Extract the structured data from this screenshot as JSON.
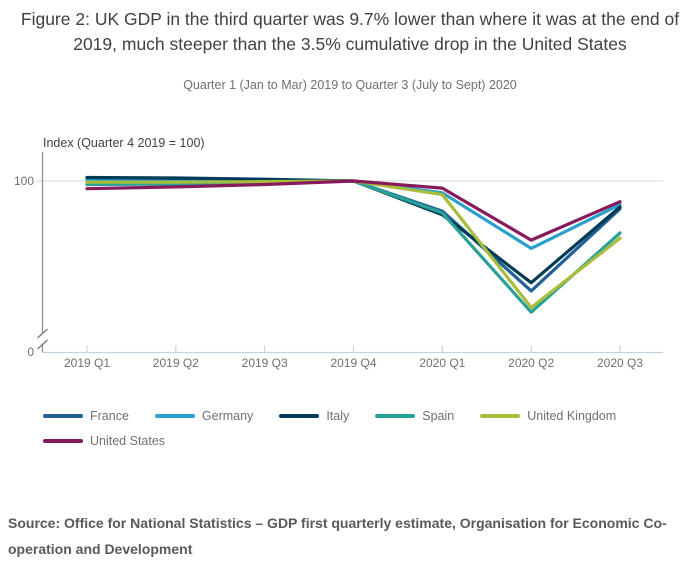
{
  "header": {
    "title": "Figure 2: UK GDP in the third quarter was 9.7% lower than where it was at the end of 2019, much steeper than the 3.5% cumulative drop in the United States",
    "subtitle": "Quarter 1 (Jan to Mar) 2019 to Quarter 3 (July to Sept) 2020"
  },
  "chart_data": {
    "type": "line",
    "title": "Figure 2: UK GDP in the third quarter was 9.7% lower than where it was at the end of 2019, much steeper than the 3.5% cumulative drop in the United States",
    "subtitle": "Quarter 1 (Jan to Mar) 2019 to Quarter 3 (July to Sept) 2020",
    "ylabel": "Index (Quarter 4 2019 = 100)",
    "xlabel": "",
    "categories": [
      "2019 Q1",
      "2019 Q2",
      "2019 Q3",
      "2019 Q4",
      "2020 Q1",
      "2020 Q2",
      "2020 Q3"
    ],
    "series": [
      {
        "name": "France",
        "color": "#206095",
        "values": [
          100.3,
          100.2,
          100.2,
          100,
          94.9,
          81.4,
          95.3
        ]
      },
      {
        "name": "Germany",
        "color": "#27A0CC",
        "values": [
          100.1,
          99.9,
          100.0,
          100,
          98.0,
          88.6,
          96.0
        ]
      },
      {
        "name": "Italy",
        "color": "#003C57",
        "values": [
          100.6,
          100.5,
          100.3,
          100,
          94.3,
          82.8,
          95.6
        ]
      },
      {
        "name": "Spain",
        "color": "#28A197",
        "values": [
          99.4,
          99.5,
          99.7,
          100,
          94.6,
          77.8,
          91.2
        ]
      },
      {
        "name": "United Kingdom",
        "color": "#A8BD3A",
        "values": [
          99.8,
          99.8,
          99.9,
          100,
          97.7,
          78.6,
          90.3
        ]
      },
      {
        "name": "United States",
        "color": "#871A5B",
        "values": [
          98.7,
          99.0,
          99.4,
          100,
          98.8,
          90.0,
          96.5
        ]
      }
    ],
    "y_ticks": [
      "100",
      "0"
    ],
    "axis_break": true,
    "grid": "single-gridline-at-100",
    "legend_position": "bottom",
    "ylim_display": [
      73,
      105
    ]
  },
  "source": {
    "text": "Source: Office for National Statistics – GDP first quarterly estimate, Organisation for Economic Co-operation and Development"
  },
  "colors": {
    "title_text": "#414042",
    "muted_text": "#707070",
    "gridline": "#d9d9d9",
    "y_axis": "#909090",
    "x_axis": "#c3d2e0"
  }
}
